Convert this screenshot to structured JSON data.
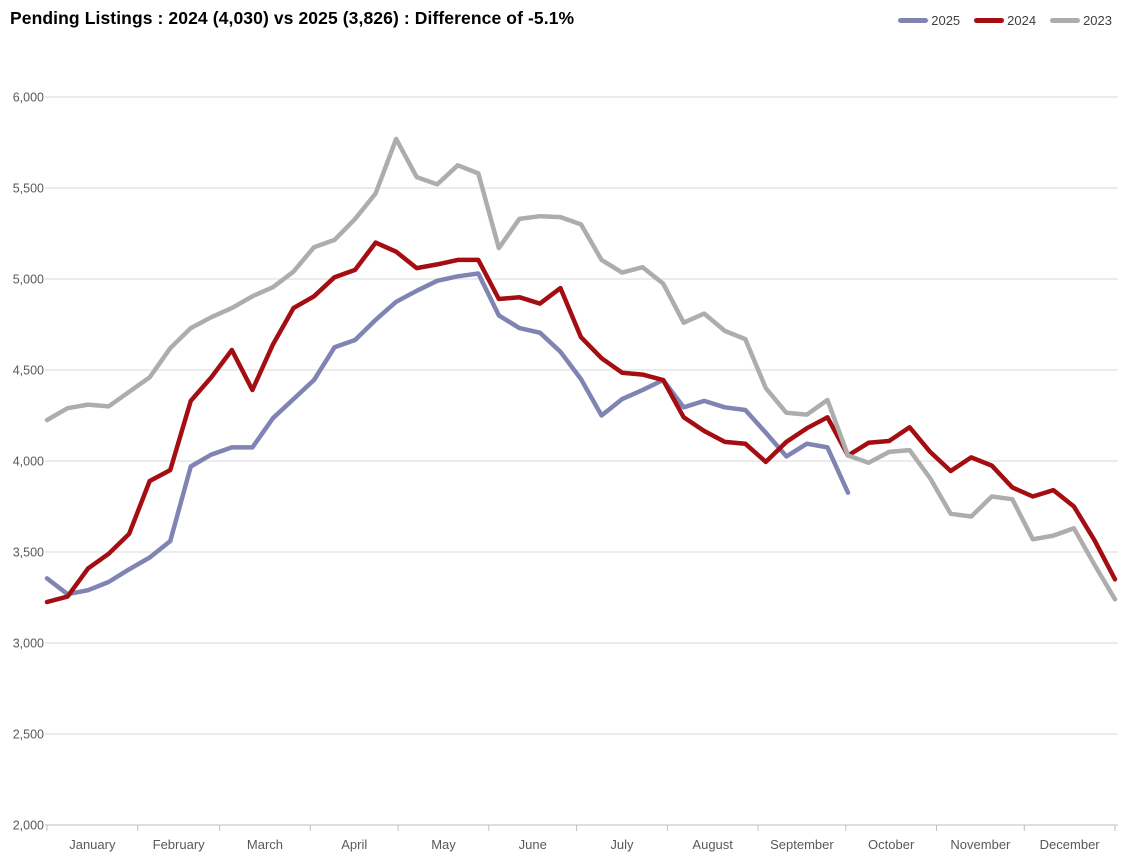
{
  "title": "Pending Listings : 2024 (4,030) vs 2025 (3,826) : Difference of -5.1%",
  "colors": {
    "series_2025": "#8084B2",
    "series_2024": "#A40E13",
    "series_2023": "#ADADAD",
    "gridline": "#D9D9D9",
    "axis_line": "#BFBFBF",
    "tick_label": "#595959",
    "legend_text": "#404040",
    "title_text": "#000000"
  },
  "chart_data": {
    "type": "line",
    "title": "Pending Listings : 2024 (4,030) vs 2025 (3,826) : Difference of -5.1%",
    "xlabel": "",
    "ylabel": "",
    "x_unit": "weeks (Jan–Dec)",
    "month_labels": [
      "January",
      "February",
      "March",
      "April",
      "May",
      "June",
      "July",
      "August",
      "September",
      "October",
      "November",
      "December"
    ],
    "ylim": [
      2000,
      6000
    ],
    "ytick_step": 500,
    "ytick_labels": [
      "2,000",
      "2,500",
      "3,000",
      "3,500",
      "4,000",
      "4,500",
      "5,000",
      "5,500",
      "6,000"
    ],
    "grid": true,
    "legend_position": "top-right",
    "legend_order": [
      "2025",
      "2024",
      "2023"
    ],
    "series": [
      {
        "name": "2025",
        "color": "#8084B2",
        "note": "ends mid-October at 3,826",
        "values": [
          3355,
          3268,
          3290,
          3335,
          3405,
          3470,
          3560,
          3970,
          4035,
          4075,
          4075,
          4235,
          4340,
          4445,
          4625,
          4665,
          4775,
          4875,
          4935,
          4990,
          5015,
          5030,
          4800,
          4730,
          4705,
          4600,
          4450,
          4250,
          4340,
          4390,
          4445,
          4295,
          4330,
          4295,
          4280,
          4155,
          4025,
          4095,
          4075,
          3826
        ]
      },
      {
        "name": "2024",
        "color": "#A40E13",
        "note": "full year, ends at ~3,350",
        "values": [
          3225,
          3255,
          3410,
          3490,
          3600,
          3890,
          3950,
          4330,
          4460,
          4610,
          4390,
          4640,
          4840,
          4905,
          5010,
          5050,
          5200,
          5150,
          5060,
          5080,
          5105,
          5105,
          4890,
          4900,
          4865,
          4950,
          4680,
          4565,
          4485,
          4475,
          4445,
          4240,
          4165,
          4105,
          4095,
          3995,
          4105,
          4180,
          4240,
          4030,
          4100,
          4110,
          4185,
          4050,
          3945,
          4020,
          3975,
          3855,
          3805,
          3840,
          3750,
          3565,
          3350
        ]
      },
      {
        "name": "2023",
        "color": "#ADADAD",
        "note": "full year, peak ~5,770 early May, ends at ~3,240",
        "values": [
          4225,
          4290,
          4310,
          4300,
          4380,
          4460,
          4620,
          4730,
          4790,
          4840,
          4905,
          4955,
          5040,
          5175,
          5215,
          5330,
          5470,
          5770,
          5560,
          5520,
          5625,
          5580,
          5170,
          5330,
          5345,
          5340,
          5300,
          5105,
          5035,
          5065,
          4975,
          4760,
          4810,
          4715,
          4670,
          4400,
          4265,
          4255,
          4335,
          4030,
          3990,
          4050,
          4060,
          3905,
          3710,
          3695,
          3805,
          3790,
          3570,
          3590,
          3630,
          3430,
          3240
        ]
      }
    ]
  }
}
